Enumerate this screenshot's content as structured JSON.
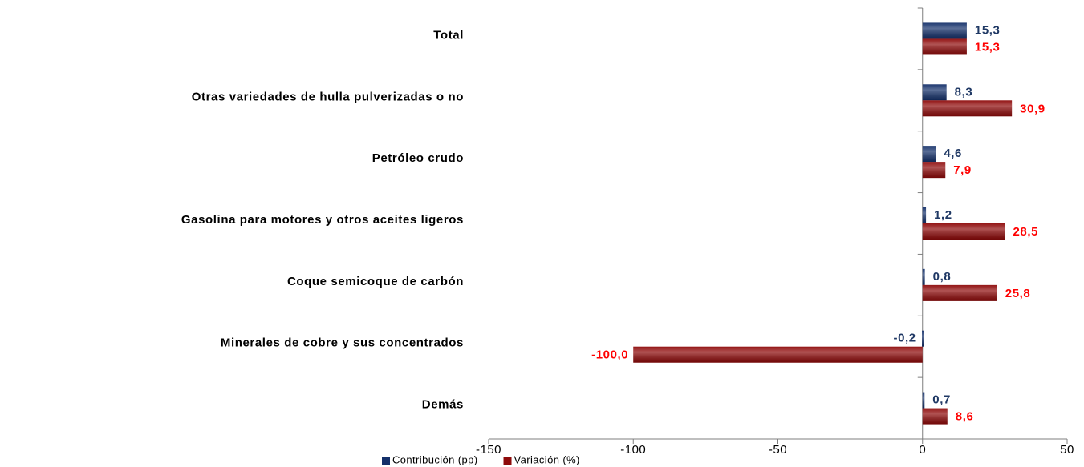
{
  "chart_data": {
    "type": "hbar",
    "categories": [
      "Total",
      "Otras variedades de hulla pulverizadas o no",
      "Petróleo crudo",
      "Gasolina para motores y otros aceites ligeros",
      "Coque semicoque de carbón",
      "Minerales de cobre y sus concentrados",
      "Demás"
    ],
    "series": [
      {
        "name": "Contribución (pp)",
        "color": "#14306a",
        "label_color": "#1f3864",
        "values": [
          15.3,
          8.3,
          4.6,
          1.2,
          0.8,
          -0.2,
          0.7
        ],
        "value_labels": [
          "15,3",
          "8,3",
          "4,6",
          "1,2",
          "0,8",
          "-0,2",
          "0,7"
        ]
      },
      {
        "name": "Variación (%)",
        "color": "#8e0a0a",
        "label_color": "#ff0000",
        "values": [
          15.3,
          30.9,
          7.9,
          28.5,
          25.8,
          -100.0,
          8.6
        ],
        "value_labels": [
          "15,3",
          "30,9",
          "7,9",
          "28,5",
          "25,8",
          "-100,0",
          "8,6"
        ]
      }
    ],
    "xlim": [
      -150,
      50
    ],
    "xticks": [
      -150,
      -100,
      -50,
      0,
      50
    ],
    "legend": "bottom"
  }
}
